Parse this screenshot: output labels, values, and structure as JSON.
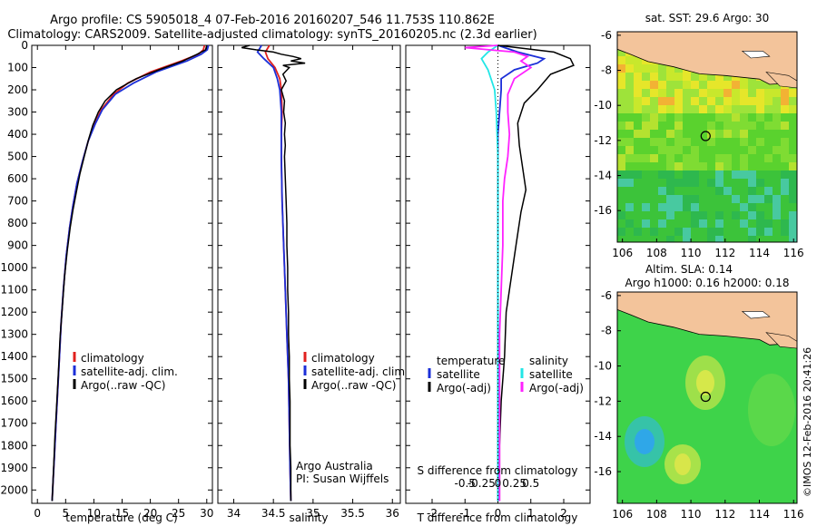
{
  "header": {
    "line1": "Argo profile: CS 5905018_4 07-Feb-2016 20160207_546 11.753S 110.862E",
    "line2": "Climatology: CARS2009. Satellite-adjusted climatology: synTS_20160205.nc (2.3d earlier)"
  },
  "side_stamp": "©IMOS 12-Feb-2016 20:41:26",
  "colors": {
    "climatology": "#e0201e",
    "satellite": "#1b2fd8",
    "argo": "#000000",
    "sat_temp_diff": "#22e6e6",
    "argo_sal_diff": "#ff22ff",
    "land": "#f3c49b",
    "marker": "#000000"
  },
  "chart_data": [
    {
      "type": "line",
      "panel": "temperature",
      "xlabel": "temperature (deg C)",
      "ylabel": "",
      "xlim": [
        -1,
        31
      ],
      "ylim": [
        2060,
        0
      ],
      "x_ticks": [
        "0",
        "5",
        "10",
        "15",
        "20",
        "25",
        "30"
      ],
      "y_ticks": [
        "0",
        "100",
        "200",
        "300",
        "400",
        "500",
        "600",
        "700",
        "800",
        "900",
        "1000",
        "1100",
        "1200",
        "1300",
        "1400",
        "1500",
        "1600",
        "1700",
        "1800",
        "1900",
        "2000"
      ],
      "legend": [
        "climatology",
        "satellite-adj. clim.",
        "Argo(..raw -QC)"
      ],
      "series": [
        {
          "name": "climatology",
          "color": "climatology",
          "points": [
            [
              29.6,
              0
            ],
            [
              29.4,
              20
            ],
            [
              28.5,
              40
            ],
            [
              25.5,
              70
            ],
            [
              20,
              120
            ],
            [
              16,
              170
            ],
            [
              13.5,
              220
            ],
            [
              11.3,
              290
            ],
            [
              10.2,
              350
            ],
            [
              9,
              430
            ],
            [
              8,
              520
            ],
            [
              7,
              620
            ],
            [
              6.3,
              720
            ],
            [
              5.7,
              820
            ],
            [
              5.1,
              950
            ],
            [
              4.6,
              1100
            ],
            [
              4.2,
              1250
            ],
            [
              3.9,
              1400
            ],
            [
              3.6,
              1550
            ],
            [
              3.3,
              1700
            ],
            [
              3.0,
              1850
            ],
            [
              2.8,
              1950
            ],
            [
              2.6,
              2050
            ]
          ]
        },
        {
          "name": "satellite-adj. clim.",
          "color": "satellite",
          "points": [
            [
              30.3,
              0
            ],
            [
              30.1,
              20
            ],
            [
              29,
              40
            ],
            [
              26.5,
              70
            ],
            [
              21,
              120
            ],
            [
              17,
              170
            ],
            [
              13.8,
              220
            ],
            [
              11.5,
              290
            ],
            [
              10.3,
              350
            ],
            [
              9,
              430
            ],
            [
              8,
              520
            ],
            [
              7,
              620
            ],
            [
              6.3,
              720
            ],
            [
              5.7,
              820
            ],
            [
              5.1,
              950
            ],
            [
              4.6,
              1100
            ],
            [
              4.2,
              1250
            ],
            [
              3.9,
              1400
            ],
            [
              3.6,
              1550
            ],
            [
              3.3,
              1700
            ],
            [
              3.0,
              1850
            ],
            [
              2.8,
              1950
            ],
            [
              2.6,
              2050
            ]
          ]
        },
        {
          "name": "Argo(..raw -QC)",
          "color": "argo",
          "points": [
            [
              30,
              0
            ],
            [
              29.8,
              20
            ],
            [
              28.3,
              40
            ],
            [
              25.8,
              70
            ],
            [
              21.5,
              110
            ],
            [
              17.5,
              150
            ],
            [
              14,
              200
            ],
            [
              12,
              250
            ],
            [
              10.8,
              300
            ],
            [
              9.8,
              360
            ],
            [
              9.1,
              420
            ],
            [
              8.3,
              500
            ],
            [
              7.5,
              580
            ],
            [
              6.9,
              660
            ],
            [
              6.3,
              740
            ],
            [
              5.8,
              820
            ],
            [
              5.3,
              920
            ],
            [
              4.8,
              1040
            ],
            [
              4.4,
              1180
            ],
            [
              4.0,
              1320
            ],
            [
              3.7,
              1480
            ],
            [
              3.4,
              1620
            ],
            [
              3.1,
              1760
            ],
            [
              2.9,
              1880
            ],
            [
              2.7,
              2000
            ],
            [
              2.6,
              2050
            ]
          ]
        }
      ]
    },
    {
      "type": "line",
      "panel": "salinity",
      "xlabel": "salinity",
      "ylabel": "",
      "xlim": [
        33.8,
        36.1
      ],
      "ylim": [
        2060,
        0
      ],
      "x_ticks": [
        "34",
        "34.5",
        "35",
        "35.5",
        "36"
      ],
      "legend": [
        "climatology",
        "satellite-adj. clim.",
        "Argo(..raw -QC)"
      ],
      "annotation": [
        "Argo Australia",
        "PI: Susan Wijffels"
      ],
      "series": [
        {
          "name": "climatology",
          "color": "climatology",
          "points": [
            [
              34.45,
              0
            ],
            [
              34.4,
              30
            ],
            [
              34.43,
              60
            ],
            [
              34.52,
              100
            ],
            [
              34.58,
              150
            ],
            [
              34.6,
              200
            ],
            [
              34.61,
              300
            ],
            [
              34.6,
              400
            ],
            [
              34.6,
              500
            ],
            [
              34.61,
              700
            ],
            [
              34.63,
              900
            ],
            [
              34.65,
              1100
            ],
            [
              34.67,
              1300
            ],
            [
              34.69,
              1500
            ],
            [
              34.7,
              1700
            ],
            [
              34.71,
              1900
            ],
            [
              34.72,
              2050
            ]
          ]
        },
        {
          "name": "satellite-adj. clim.",
          "color": "satellite",
          "points": [
            [
              34.35,
              0
            ],
            [
              34.3,
              30
            ],
            [
              34.38,
              60
            ],
            [
              34.5,
              100
            ],
            [
              34.55,
              150
            ],
            [
              34.58,
              200
            ],
            [
              34.6,
              300
            ],
            [
              34.6,
              400
            ],
            [
              34.6,
              500
            ],
            [
              34.61,
              700
            ],
            [
              34.63,
              900
            ],
            [
              34.65,
              1100
            ],
            [
              34.67,
              1300
            ],
            [
              34.69,
              1500
            ],
            [
              34.7,
              1700
            ],
            [
              34.71,
              1900
            ],
            [
              34.72,
              2050
            ]
          ]
        },
        {
          "name": "Argo(..raw -QC)",
          "color": "argo",
          "points": [
            [
              34.2,
              0
            ],
            [
              34.1,
              10
            ],
            [
              34.28,
              20
            ],
            [
              34.5,
              30
            ],
            [
              34.6,
              40
            ],
            [
              34.75,
              50
            ],
            [
              34.85,
              60
            ],
            [
              34.72,
              70
            ],
            [
              34.9,
              80
            ],
            [
              34.62,
              90
            ],
            [
              34.7,
              100
            ],
            [
              34.62,
              130
            ],
            [
              34.66,
              160
            ],
            [
              34.6,
              200
            ],
            [
              34.64,
              250
            ],
            [
              34.63,
              300
            ],
            [
              34.65,
              350
            ],
            [
              34.64,
              400
            ],
            [
              34.65,
              450
            ],
            [
              34.64,
              500
            ],
            [
              34.65,
              600
            ],
            [
              34.66,
              700
            ],
            [
              34.67,
              800
            ],
            [
              34.67,
              900
            ],
            [
              34.68,
              1000
            ],
            [
              34.68,
              1100
            ],
            [
              34.69,
              1200
            ],
            [
              34.69,
              1300
            ],
            [
              34.7,
              1400
            ],
            [
              34.7,
              1500
            ],
            [
              34.71,
              1600
            ],
            [
              34.71,
              1700
            ],
            [
              34.71,
              1800
            ],
            [
              34.72,
              1900
            ],
            [
              34.72,
              2050
            ]
          ]
        }
      ]
    },
    {
      "type": "line",
      "panel": "difference",
      "xlabel": "T difference from climatology",
      "xlabel2": "S difference from climatology",
      "xlim": [
        -2.8,
        2.8
      ],
      "ylim": [
        2060,
        0
      ],
      "x_ticks": [
        "-2",
        "-1",
        "0",
        "1",
        "2"
      ],
      "x_ticks2": [
        "-0.5",
        "-0.25",
        "0",
        "0.25",
        "0.5"
      ],
      "legend_temperature": {
        "title": "temperature",
        "items": [
          "satellite",
          "Argo(-adj)"
        ]
      },
      "legend_salinity": {
        "title": "salinity",
        "items": [
          "satellite",
          "Argo(-adj)"
        ]
      },
      "series": [
        {
          "name": "satellite",
          "color": "satellite",
          "points": [
            [
              0,
              0
            ],
            [
              0.6,
              30
            ],
            [
              1.4,
              60
            ],
            [
              1.2,
              80
            ],
            [
              0.5,
              110
            ],
            [
              0.1,
              150
            ],
            [
              0.1,
              200
            ],
            [
              0.05,
              300
            ],
            [
              0,
              400
            ],
            [
              0,
              2050
            ]
          ]
        },
        {
          "name": "Argo(-adj)",
          "color": "argo",
          "points": [
            [
              0,
              0
            ],
            [
              1.7,
              30
            ],
            [
              2.2,
              60
            ],
            [
              2.3,
              90
            ],
            [
              1.6,
              130
            ],
            [
              1.2,
              200
            ],
            [
              0.8,
              260
            ],
            [
              0.6,
              350
            ],
            [
              0.65,
              450
            ],
            [
              0.75,
              550
            ],
            [
              0.85,
              650
            ],
            [
              0.7,
              750
            ],
            [
              0.55,
              900
            ],
            [
              0.45,
              1000
            ],
            [
              0.35,
              1100
            ],
            [
              0.25,
              1200
            ],
            [
              0.2,
              1400
            ],
            [
              0.1,
              1600
            ],
            [
              0.05,
              1800
            ],
            [
              0.05,
              2050
            ]
          ]
        },
        {
          "name": "satellite",
          "color": "sat_temp_diff",
          "points": [
            [
              0,
              0
            ],
            [
              -0.3,
              30
            ],
            [
              -0.5,
              60
            ],
            [
              -0.3,
              110
            ],
            [
              -0.1,
              200
            ],
            [
              -0.05,
              300
            ],
            [
              0,
              500
            ],
            [
              0,
              2050
            ]
          ]
        },
        {
          "name": "Argo(-adj)",
          "color": "argo_sal_diff",
          "points": [
            [
              0,
              0
            ],
            [
              -1,
              10
            ],
            [
              0.5,
              30
            ],
            [
              0.9,
              50
            ],
            [
              0.7,
              70
            ],
            [
              1,
              100
            ],
            [
              0.5,
              150
            ],
            [
              0.3,
              220
            ],
            [
              0.3,
              300
            ],
            [
              0.35,
              400
            ],
            [
              0.3,
              500
            ],
            [
              0.2,
              600
            ],
            [
              0.15,
              700
            ],
            [
              0.15,
              900
            ],
            [
              0.1,
              1100
            ],
            [
              0.05,
              1300
            ],
            [
              0.05,
              2050
            ]
          ]
        }
      ]
    }
  ],
  "maps": [
    {
      "title_lines": [
        "sat. SST: 29.6 Argo: 30"
      ],
      "x_ticks": [
        "106",
        "108",
        "110",
        "112",
        "114",
        "116"
      ],
      "y_ticks": [
        "-6",
        "-8",
        "-10",
        "-12",
        "-14",
        "-16"
      ],
      "lon_range": [
        105.7,
        116.2
      ],
      "lat_range": [
        -17.8,
        -5.8
      ],
      "marker": [
        110.86,
        -11.75
      ]
    },
    {
      "title_lines": [
        "Altim. SLA: 0.14",
        "Argo h1000: 0.16 h2000: 0.18"
      ],
      "x_ticks": [
        "106",
        "108",
        "110",
        "112",
        "114",
        "116"
      ],
      "y_ticks": [
        "-6",
        "-8",
        "-10",
        "-12",
        "-14",
        "-16"
      ],
      "lon_range": [
        105.7,
        116.2
      ],
      "lat_range": [
        -17.8,
        -5.8
      ],
      "marker": [
        110.86,
        -11.75
      ]
    }
  ]
}
